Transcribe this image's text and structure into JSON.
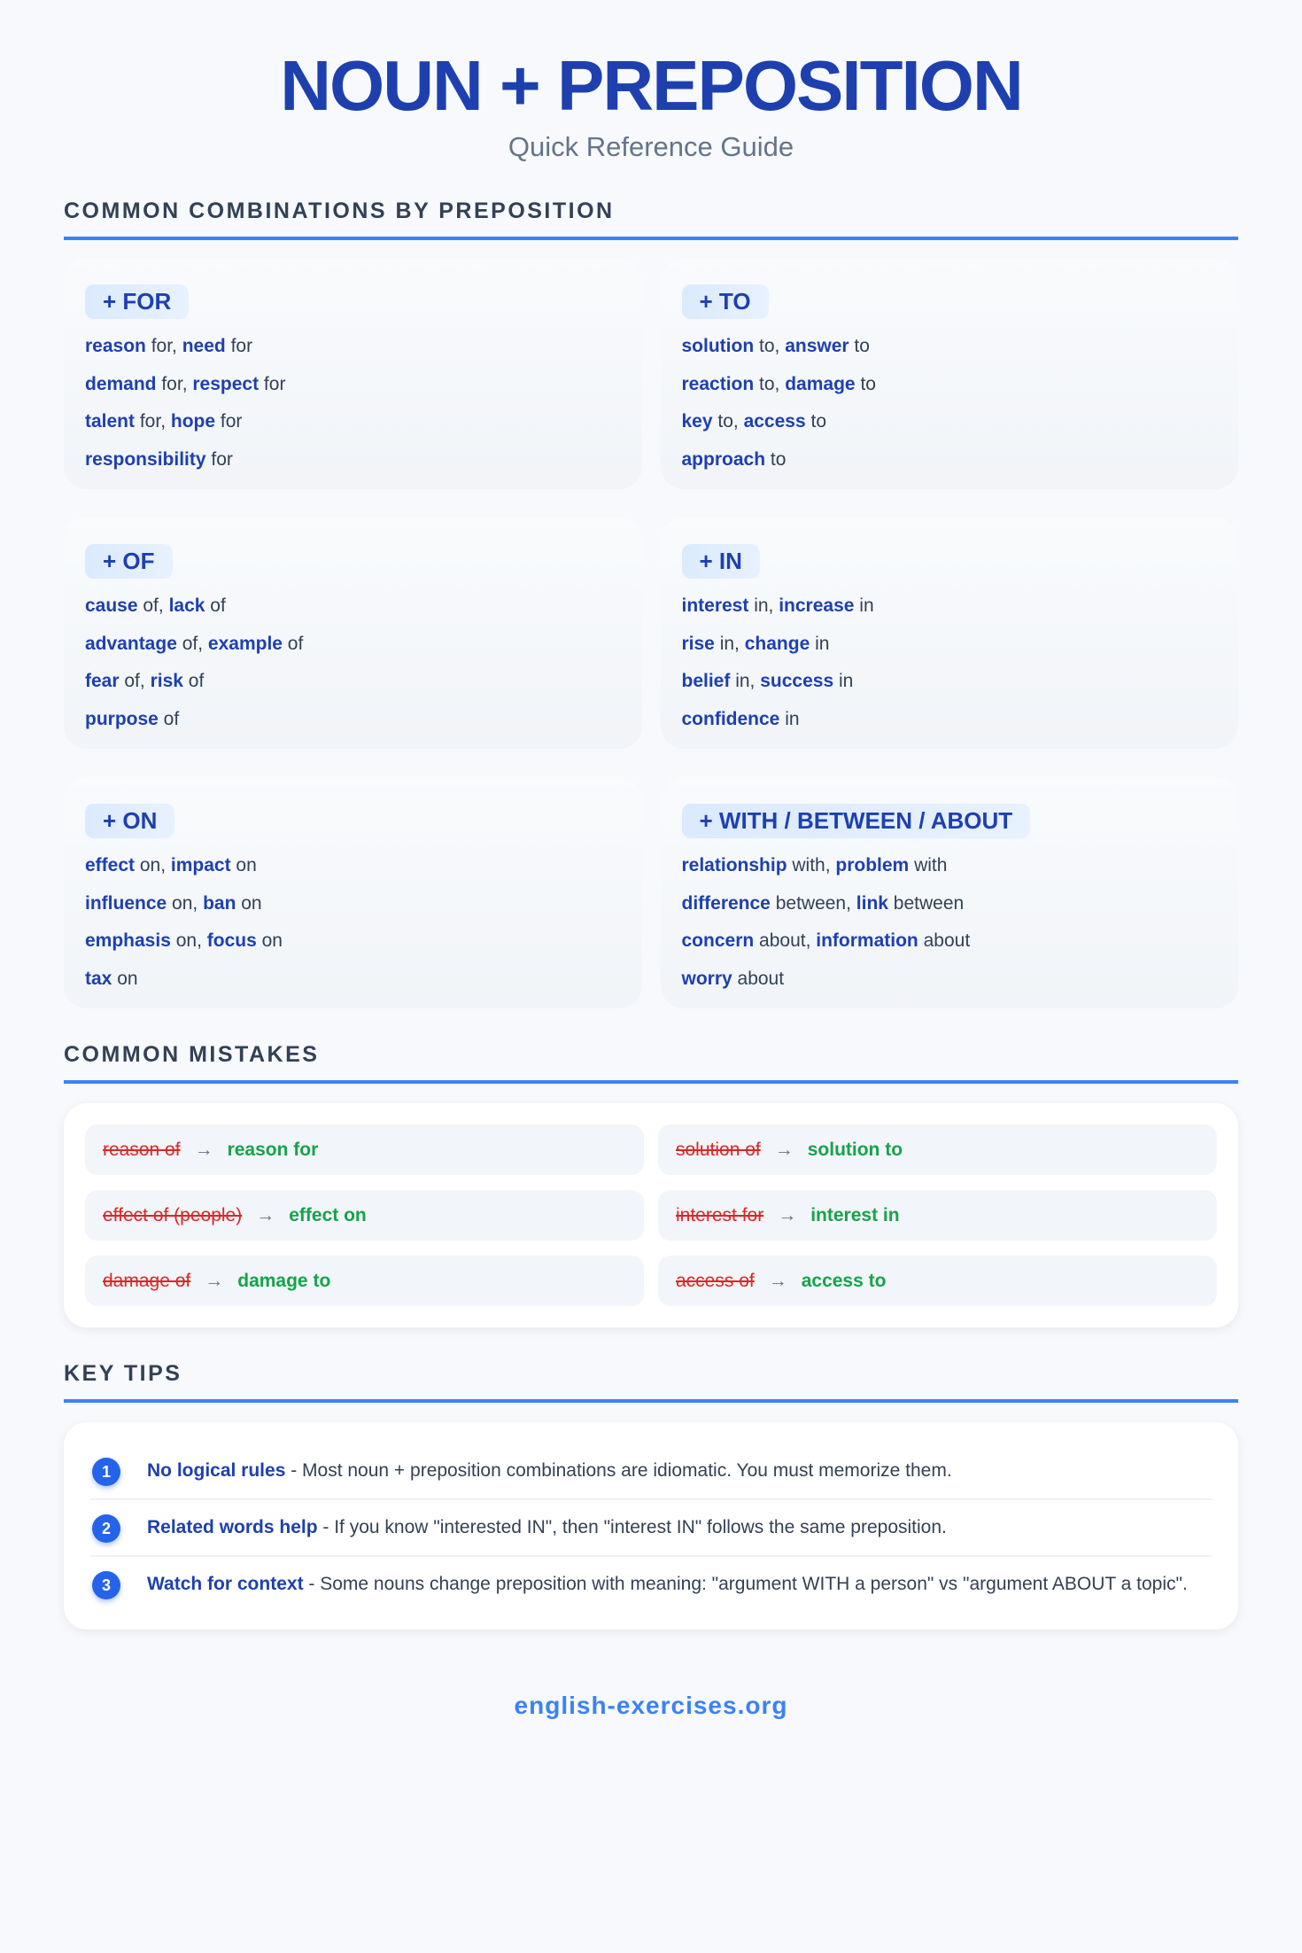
{
  "header": {
    "title": "NOUN + PREPOSITION",
    "subtitle": "Quick Reference Guide"
  },
  "sections": {
    "combinations": "COMMON COMBINATIONS BY PREPOSITION",
    "mistakes": "COMMON MISTAKES",
    "tips": "KEY TIPS"
  },
  "cards": [
    {
      "badge": "+ FOR",
      "lines": [
        [
          [
            "reason",
            " for, "
          ],
          [
            "need",
            " for"
          ]
        ],
        [
          [
            "demand",
            " for, "
          ],
          [
            "respect",
            " for"
          ]
        ],
        [
          [
            "talent",
            " for, "
          ],
          [
            "hope",
            " for"
          ]
        ],
        [
          [
            "responsibility",
            " for"
          ]
        ]
      ]
    },
    {
      "badge": "+ TO",
      "lines": [
        [
          [
            "solution",
            " to, "
          ],
          [
            "answer",
            " to"
          ]
        ],
        [
          [
            "reaction",
            " to, "
          ],
          [
            "damage",
            " to"
          ]
        ],
        [
          [
            "key",
            " to, "
          ],
          [
            "access",
            " to"
          ]
        ],
        [
          [
            "approach",
            " to"
          ]
        ]
      ]
    },
    {
      "badge": "+ OF",
      "lines": [
        [
          [
            "cause",
            " of, "
          ],
          [
            "lack",
            " of"
          ]
        ],
        [
          [
            "advantage",
            " of, "
          ],
          [
            "example",
            " of"
          ]
        ],
        [
          [
            "fear",
            " of, "
          ],
          [
            "risk",
            " of"
          ]
        ],
        [
          [
            "purpose",
            " of"
          ]
        ]
      ]
    },
    {
      "badge": "+ IN",
      "lines": [
        [
          [
            "interest",
            " in, "
          ],
          [
            "increase",
            " in"
          ]
        ],
        [
          [
            "rise",
            " in, "
          ],
          [
            "change",
            " in"
          ]
        ],
        [
          [
            "belief",
            " in, "
          ],
          [
            "success",
            " in"
          ]
        ],
        [
          [
            "confidence",
            " in"
          ]
        ]
      ]
    },
    {
      "badge": "+ ON",
      "lines": [
        [
          [
            "effect",
            " on, "
          ],
          [
            "impact",
            " on"
          ]
        ],
        [
          [
            "influence",
            " on, "
          ],
          [
            "ban",
            " on"
          ]
        ],
        [
          [
            "emphasis",
            " on, "
          ],
          [
            "focus",
            " on"
          ]
        ],
        [
          [
            "tax",
            " on"
          ]
        ]
      ]
    },
    {
      "badge": "+ WITH / BETWEEN / ABOUT",
      "lines": [
        [
          [
            "relationship",
            " with, "
          ],
          [
            "problem",
            " with"
          ]
        ],
        [
          [
            "difference",
            " between, "
          ],
          [
            "link",
            " between"
          ]
        ],
        [
          [
            "concern",
            " about, "
          ],
          [
            "information",
            " about"
          ]
        ],
        [
          [
            "worry",
            " about"
          ]
        ]
      ]
    }
  ],
  "mistakes": [
    {
      "wrong": "reason of",
      "right": "reason for"
    },
    {
      "wrong": "solution of",
      "right": "solution to"
    },
    {
      "wrong": "effect of (people)",
      "right": "effect on"
    },
    {
      "wrong": "interest for",
      "right": "interest in"
    },
    {
      "wrong": "damage of",
      "right": "damage to"
    },
    {
      "wrong": "access of",
      "right": "access to"
    }
  ],
  "arrow": "→",
  "tips": [
    {
      "num": "1",
      "title": "No logical rules",
      "text": " - Most noun + preposition combinations are idiomatic. You must memorize them."
    },
    {
      "num": "2",
      "title": "Related words help",
      "text": " - If you know \"interested IN\", then \"interest IN\" follows the same preposition."
    },
    {
      "num": "3",
      "title": "Watch for context",
      "text": " - Some nouns change preposition with meaning: \"argument WITH a person\" vs \"argument ABOUT a topic\"."
    }
  ],
  "footer": "english-exercises.org"
}
